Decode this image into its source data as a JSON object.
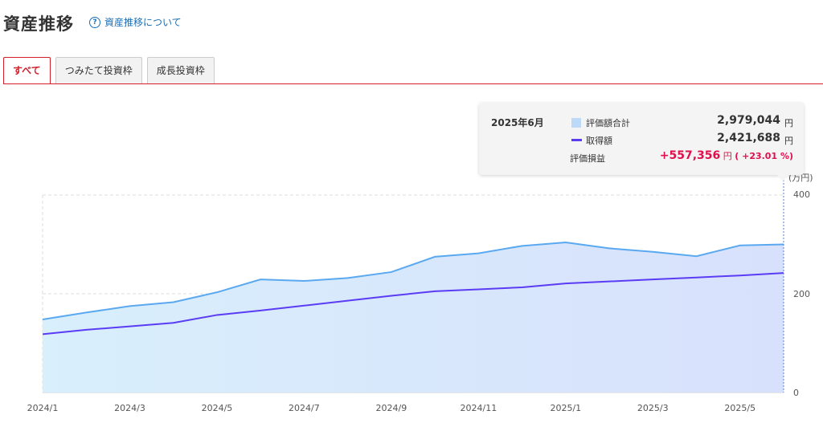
{
  "page": {
    "title": "資産推移",
    "help_link": "資産推移について",
    "help_icon": "question-circle-icon"
  },
  "tabs": [
    "すべて",
    "つみたて投資枠",
    "成長投資枠"
  ],
  "tooltip": {
    "month": "2025年6月",
    "rows": [
      {
        "label": "評価額合計",
        "value": "2,979,044",
        "unit": "円"
      },
      {
        "label": "取得額",
        "value": "2,421,688",
        "unit": "円"
      },
      {
        "label": "評価損益",
        "value": "+557,356",
        "unit": "円",
        "pct": "( +23.01 %)"
      }
    ]
  },
  "colors": {
    "accent": "#d21e2b",
    "valuation": "#5aa9f0",
    "cost": "#5b3cf5",
    "gain": "#e0104c"
  },
  "chart_data": {
    "type": "area",
    "y_unit": "(万円)",
    "ylim": [
      0,
      400
    ],
    "y_ticks": [
      "400",
      "200",
      "0"
    ],
    "x_tick_labels": [
      "2024/1",
      "2024/3",
      "2024/5",
      "2024/7",
      "2024/9",
      "2024/11",
      "2025/1",
      "2025/3",
      "2025/5"
    ],
    "x": [
      "2024/1",
      "2024/2",
      "2024/3",
      "2024/4",
      "2024/5",
      "2024/6",
      "2024/7",
      "2024/8",
      "2024/9",
      "2024/10",
      "2024/11",
      "2024/12",
      "2025/1",
      "2025/2",
      "2025/3",
      "2025/4",
      "2025/5",
      "2025/6"
    ],
    "series": [
      {
        "name": "評価額合計",
        "values": [
          148,
          162,
          175,
          183,
          203,
          229,
          226,
          232,
          244,
          275,
          282,
          297,
          304,
          292,
          285,
          276,
          298,
          300
        ]
      },
      {
        "name": "取得額",
        "values": [
          118,
          127,
          134,
          141,
          157,
          166,
          176,
          186,
          196,
          205,
          209,
          213,
          221,
          225,
          229,
          233,
          237,
          242
        ]
      }
    ],
    "grid": true
  }
}
